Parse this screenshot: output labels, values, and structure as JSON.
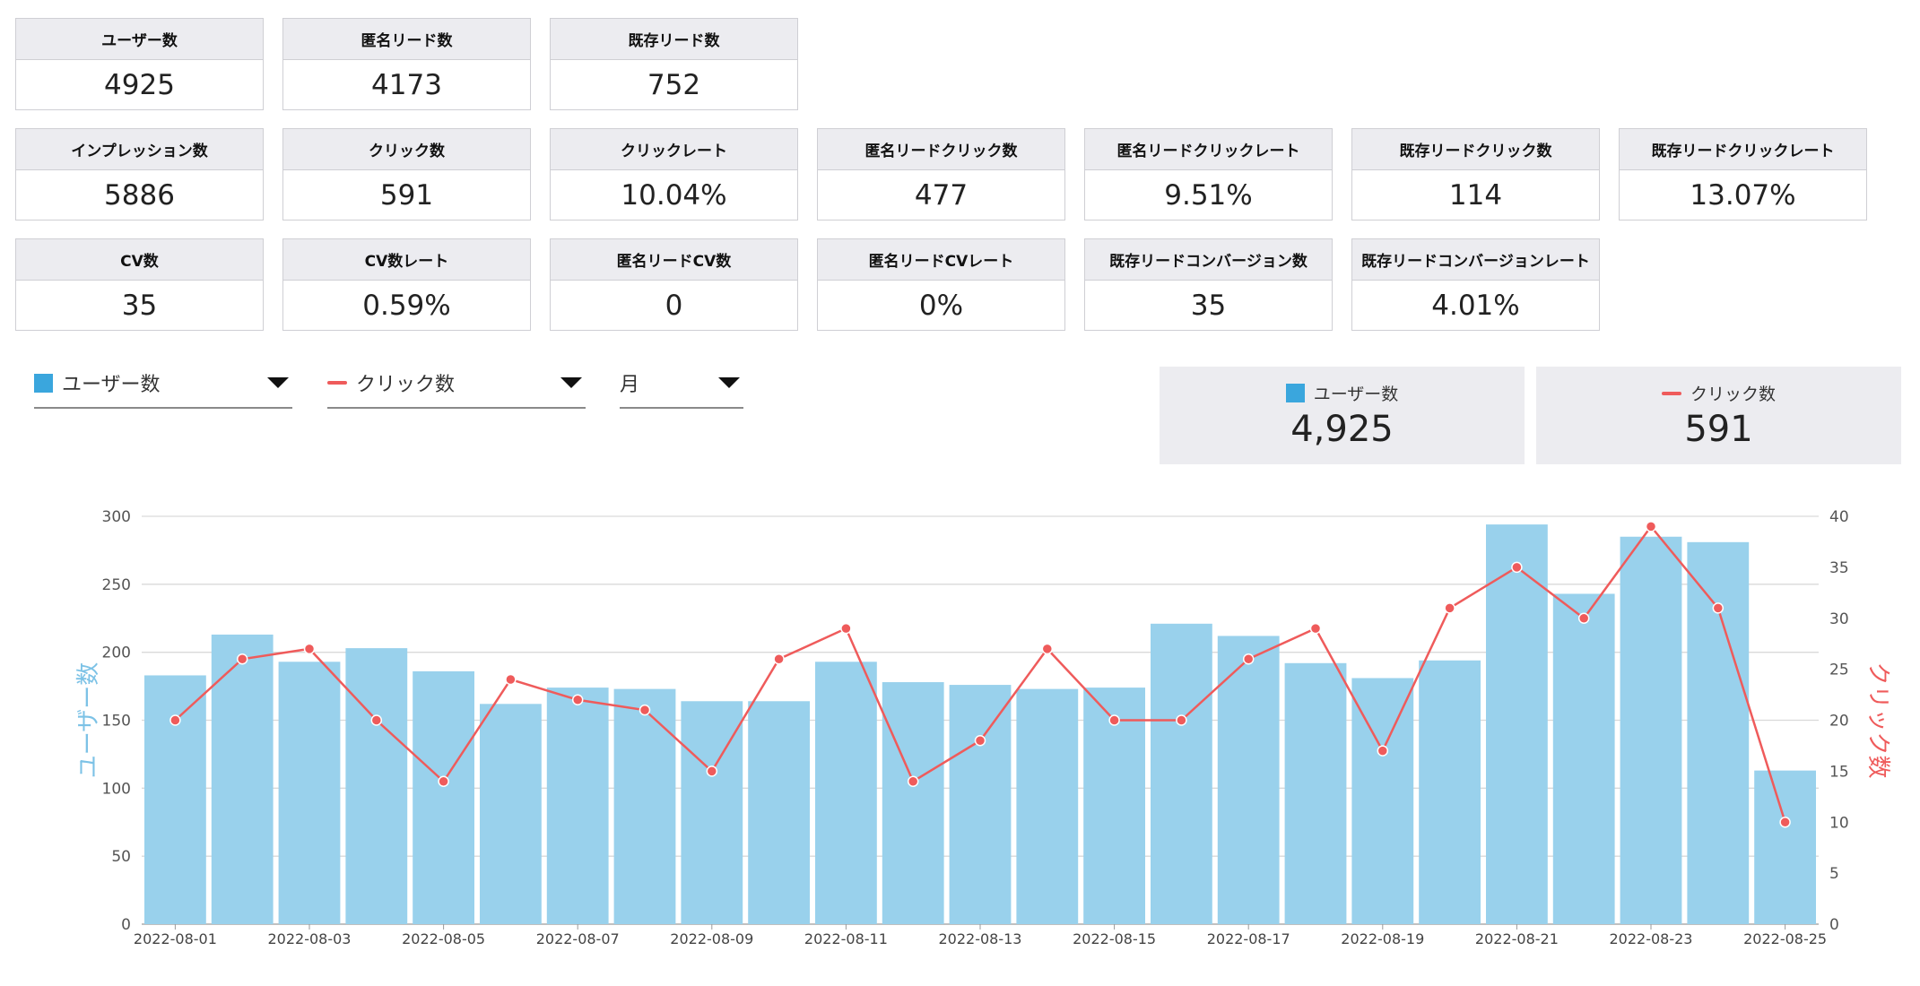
{
  "kpi_rows": [
    [
      {
        "label": "ユーザー数",
        "value": "4925"
      },
      {
        "label": "匿名リード数",
        "value": "4173"
      },
      {
        "label": "既存リード数",
        "value": "752"
      }
    ],
    [
      {
        "label": "インプレッション数",
        "value": "5886"
      },
      {
        "label": "クリック数",
        "value": "591"
      },
      {
        "label": "クリックレート",
        "value": "10.04%"
      },
      {
        "label": "匿名リードクリック数",
        "value": "477"
      },
      {
        "label": "匿名リードクリックレート",
        "value": "9.51%"
      },
      {
        "label": "既存リードクリック数",
        "value": "114"
      },
      {
        "label": "既存リードクリックレート",
        "value": "13.07%"
      }
    ],
    [
      {
        "label": "CV数",
        "value": "35"
      },
      {
        "label": "CV数レート",
        "value": "0.59%"
      },
      {
        "label": "匿名リードCV数",
        "value": "0"
      },
      {
        "label": "匿名リードCVレート",
        "value": "0%"
      },
      {
        "label": "既存リードコンバージョン数",
        "value": "35"
      },
      {
        "label": "既存リードコンバージョンレート",
        "value": "4.01%"
      }
    ]
  ],
  "controls": {
    "left_metric": "ユーザー数",
    "right_metric": "クリック数",
    "period": "月"
  },
  "legend": {
    "left": {
      "label": "ユーザー数",
      "value": "4,925"
    },
    "right": {
      "label": "クリック数",
      "value": "591"
    }
  },
  "colors": {
    "bar": "#99d1ec",
    "bar_legend": "#3aa6dd",
    "line": "#ef5b5b",
    "grid": "#d9d9d9"
  },
  "chart_data": {
    "type": "bar",
    "x": [
      "2022-08-01",
      "2022-08-02",
      "2022-08-03",
      "2022-08-04",
      "2022-08-05",
      "2022-08-06",
      "2022-08-07",
      "2022-08-08",
      "2022-08-09",
      "2022-08-10",
      "2022-08-11",
      "2022-08-12",
      "2022-08-13",
      "2022-08-14",
      "2022-08-15",
      "2022-08-16",
      "2022-08-17",
      "2022-08-18",
      "2022-08-19",
      "2022-08-20",
      "2022-08-21",
      "2022-08-22",
      "2022-08-23",
      "2022-08-24",
      "2022-08-25"
    ],
    "x_tick_labels": [
      "2022-08-01",
      "2022-08-03",
      "2022-08-05",
      "2022-08-07",
      "2022-08-09",
      "2022-08-11",
      "2022-08-13",
      "2022-08-15",
      "2022-08-17",
      "2022-08-19",
      "2022-08-21",
      "2022-08-23",
      "2022-08-25"
    ],
    "series": [
      {
        "name": "ユーザー数",
        "type": "bar",
        "axis": "left",
        "values": [
          183,
          213,
          193,
          203,
          186,
          162,
          174,
          173,
          164,
          164,
          193,
          178,
          176,
          173,
          174,
          221,
          212,
          192,
          181,
          194,
          294,
          243,
          285,
          281,
          113
        ]
      },
      {
        "name": "クリック数",
        "type": "line",
        "axis": "right",
        "values": [
          20,
          26,
          27,
          20,
          14,
          24,
          22,
          21,
          15,
          26,
          29,
          14,
          18,
          27,
          20,
          20,
          26,
          29,
          17,
          31,
          35,
          30,
          39,
          31,
          10
        ]
      }
    ],
    "ylabel": "ユーザー数",
    "y2label": "クリック数",
    "ylim": [
      0,
      300
    ],
    "y2lim": [
      0,
      40
    ],
    "yticks": [
      0,
      50,
      100,
      150,
      200,
      250,
      300
    ],
    "y2ticks": [
      0,
      5,
      10,
      15,
      20,
      25,
      30,
      35,
      40
    ],
    "grid": true
  }
}
